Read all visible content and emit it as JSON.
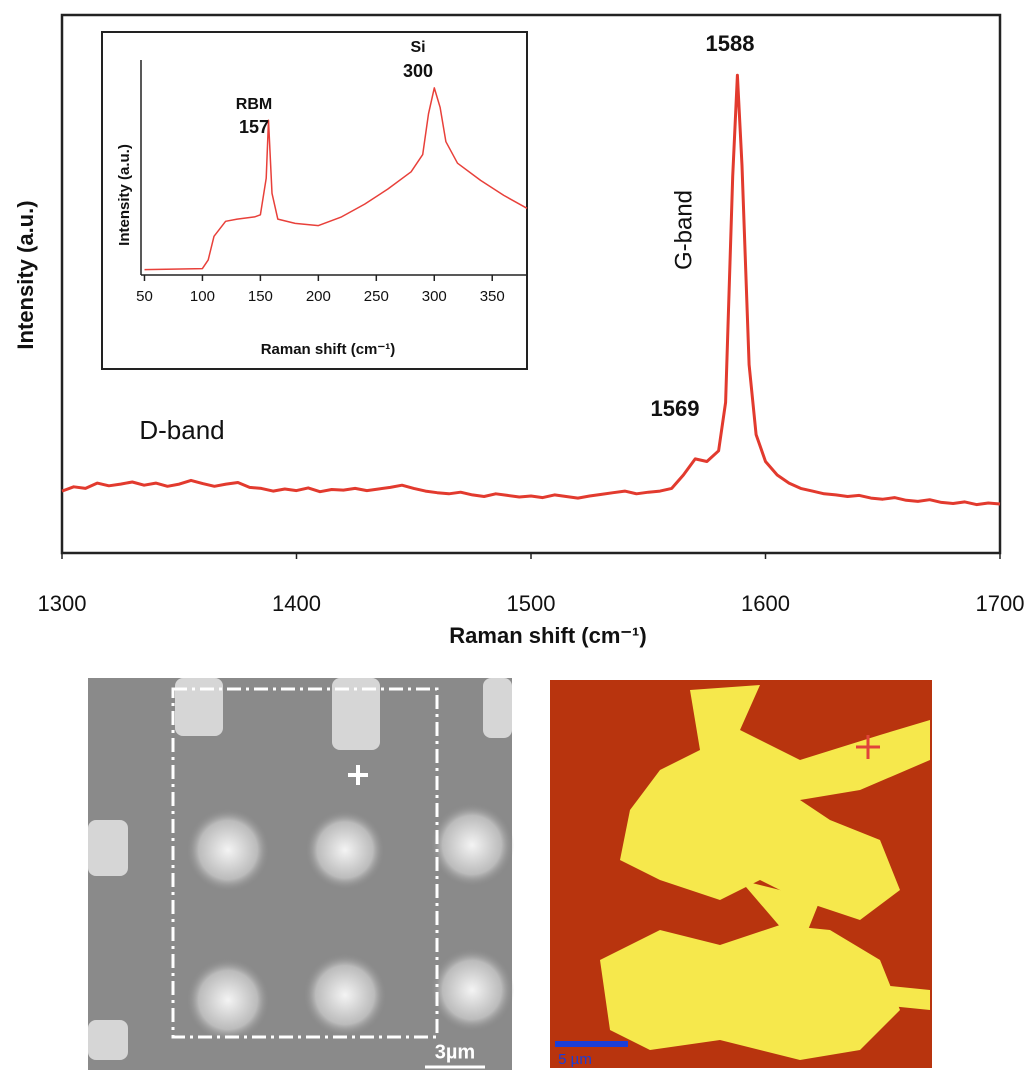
{
  "chart_data": [
    {
      "type": "line",
      "xlabel": "Raman shift (cm⁻¹)",
      "ylabel": "Intensity (a.u.)",
      "xlim": [
        1300,
        1700
      ],
      "ylim": [
        0,
        100
      ],
      "xticks": [
        1300,
        1400,
        1500,
        1600,
        1700
      ],
      "annotations": [
        "1588",
        "G-band",
        "1569",
        "D-band"
      ],
      "series": [
        {
          "color": "#e23a2e",
          "x": [
            1300,
            1305,
            1310,
            1315,
            1320,
            1325,
            1330,
            1335,
            1340,
            1345,
            1350,
            1355,
            1360,
            1365,
            1370,
            1375,
            1380,
            1385,
            1390,
            1395,
            1400,
            1405,
            1410,
            1415,
            1420,
            1425,
            1430,
            1435,
            1440,
            1445,
            1450,
            1455,
            1460,
            1465,
            1470,
            1475,
            1480,
            1485,
            1490,
            1495,
            1500,
            1505,
            1510,
            1515,
            1520,
            1525,
            1530,
            1535,
            1540,
            1545,
            1550,
            1555,
            1560,
            1565,
            1570,
            1575,
            1580,
            1583,
            1586,
            1588,
            1590,
            1593,
            1596,
            1600,
            1605,
            1610,
            1615,
            1620,
            1625,
            1630,
            1635,
            1640,
            1645,
            1650,
            1655,
            1660,
            1665,
            1670,
            1675,
            1680,
            1685,
            1690,
            1695,
            1700
          ],
          "values": [
            11.5,
            12.3,
            12,
            13,
            12.5,
            12.8,
            13.2,
            12.6,
            13,
            12.4,
            12.8,
            13.5,
            12.9,
            12.4,
            12.8,
            13.1,
            12.2,
            12,
            11.5,
            11.9,
            11.6,
            12.1,
            11.4,
            11.8,
            11.7,
            12,
            11.6,
            11.9,
            12.2,
            12.6,
            12,
            11.5,
            11.2,
            11,
            11.3,
            10.8,
            10.5,
            11,
            10.7,
            10.4,
            10.6,
            10.3,
            10.8,
            10.5,
            10.2,
            10.6,
            10.9,
            11.2,
            11.5,
            11,
            11.3,
            11.5,
            12,
            14.5,
            17.5,
            17,
            19,
            28,
            70,
            88.8,
            72,
            35,
            22,
            17,
            14.5,
            13,
            12,
            11.5,
            11,
            10.8,
            10.5,
            10.7,
            10.2,
            10,
            10.3,
            9.8,
            9.6,
            9.9,
            9.4,
            9.2,
            9.5,
            9,
            9.3,
            9.1
          ]
        }
      ]
    },
    {
      "type": "line",
      "xlabel": "Raman shift (cm⁻¹)",
      "ylabel": "Intensity (a.u.)",
      "xlim": [
        47,
        380
      ],
      "ylim": [
        0,
        100
      ],
      "xticks": [
        50,
        100,
        150,
        200,
        250,
        300,
        350
      ],
      "annotations": [
        "RBM",
        "157",
        "Si",
        "300"
      ],
      "series": [
        {
          "color": "#e8403a",
          "x": [
            50,
            100,
            105,
            110,
            120,
            130,
            145,
            150,
            155,
            157,
            160,
            165,
            180,
            200,
            220,
            240,
            260,
            280,
            290,
            295,
            300,
            305,
            310,
            320,
            340,
            360,
            380
          ],
          "values": [
            2.5,
            3,
            7,
            18,
            25,
            26,
            27,
            28,
            45,
            72,
            38,
            26,
            24,
            23,
            27,
            33,
            40,
            48,
            56,
            75,
            87,
            78,
            62,
            52,
            44,
            37,
            31
          ]
        }
      ]
    }
  ],
  "images": {
    "sem": {
      "scale_label": "3µm"
    },
    "raman_map": {
      "scale_label": "5 µm"
    }
  }
}
